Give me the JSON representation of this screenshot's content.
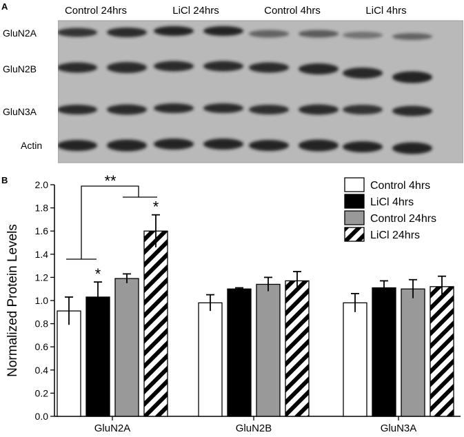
{
  "panels": {
    "a": "A",
    "b": "B"
  },
  "blot": {
    "lane_groups": [
      "Control 24hrs",
      "LiCl 24hrs",
      "Control 4hrs",
      "LiCl 4hrs"
    ],
    "rows": [
      "GluN2A",
      "GluN2B",
      "GluN3A",
      "Actin"
    ],
    "background": "#b9b9b9",
    "band_color": "#1a1a1a"
  },
  "chart_data": {
    "type": "bar",
    "categories": [
      "GluN2A",
      "GluN2B",
      "GluN3A"
    ],
    "series": [
      {
        "name": "Control 4hrs",
        "fill": "white",
        "values": [
          0.91,
          0.98,
          0.98
        ],
        "errors": [
          0.12,
          0.07,
          0.08
        ]
      },
      {
        "name": "LiCl 4hrs",
        "fill": "black",
        "values": [
          1.03,
          1.1,
          1.11
        ],
        "errors": [
          0.13,
          0.01,
          0.06
        ]
      },
      {
        "name": "Control 24hrs",
        "fill": "#999999",
        "values": [
          1.19,
          1.14,
          1.1
        ],
        "errors": [
          0.04,
          0.06,
          0.08
        ]
      },
      {
        "name": "LiCl 24hrs",
        "fill": "hatch",
        "values": [
          1.6,
          1.17,
          1.12
        ],
        "errors": [
          0.14,
          0.08,
          0.09
        ]
      }
    ],
    "ylabel": "Normalized Protein Levels",
    "ylim": [
      0,
      2.0
    ],
    "yticks": [
      "0.0",
      "0.2",
      "0.4",
      "0.6",
      "0.8",
      "1.0",
      "1.2",
      "1.4",
      "1.6",
      "1.8",
      "2.0"
    ],
    "significance": {
      "single": "*",
      "double": "**"
    },
    "legend_position": "top-right"
  }
}
